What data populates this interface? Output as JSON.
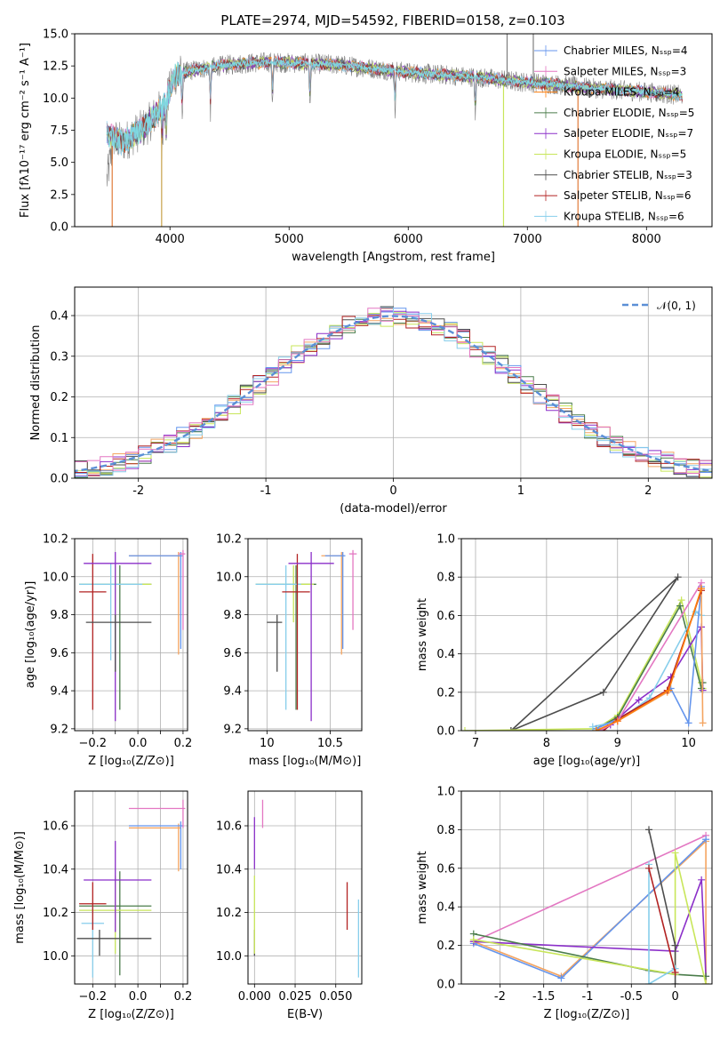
{
  "title": "PLATE=2974, MJD=54592, FIBERID=0158, z=0.103",
  "colors": {
    "grid": "#b0b0b0",
    "model_palette": [
      "#6495ed",
      "#f4a460",
      "#4a7c4a",
      "#8b2fc9",
      "#c8e65a",
      "#4d4d4d",
      "#b22222",
      "#87ceeb",
      "#e377c2",
      "#ff7f0e",
      "#9acd32"
    ]
  },
  "charts": {
    "spectrum": {
      "type": "line",
      "xlabel": "wavelength [Angstrom, rest frame]",
      "ylabel": "Flux [fλ10⁻¹⁷ erg cm⁻² s⁻¹ A⁻¹]",
      "xlim": [
        3200,
        8550
      ],
      "ylim": [
        0,
        15
      ],
      "xticks": [
        4000,
        5000,
        6000,
        7000,
        8000
      ],
      "yticks": [
        0.0,
        2.5,
        5.0,
        7.5,
        10.0,
        12.5,
        15.0
      ],
      "legend_position": "top-right",
      "legend": [
        {
          "label": "Chabrier MILES, Nₛₛₚ=4",
          "color": "#6495ed"
        },
        {
          "label": "Salpeter MILES, Nₛₛₚ=3",
          "color": "#e377c2"
        },
        {
          "label": "Kroupa MILES, Nₛₛₚ=4",
          "color": "#ff7f0e"
        },
        {
          "label": "Chabrier ELODIE, Nₛₛₚ=5",
          "color": "#4a7c4a"
        },
        {
          "label": "Salpeter ELODIE, Nₛₛₚ=7",
          "color": "#8b2fc9"
        },
        {
          "label": "Kroupa ELODIE, Nₛₛₚ=5",
          "color": "#c8e65a"
        },
        {
          "label": "Chabrier STELIB, Nₛₛₚ=3",
          "color": "#4d4d4d"
        },
        {
          "label": "Salpeter STELIB, Nₛₛₚ=6",
          "color": "#b22222"
        },
        {
          "label": "Kroupa STELIB, Nₛₛₚ=6",
          "color": "#87ceeb"
        }
      ],
      "continuum": {
        "x": [
          3470,
          3600,
          3800,
          3950,
          4050,
          4200,
          4500,
          4800,
          5100,
          5400,
          5700,
          6000,
          6300,
          6600,
          6900,
          7200,
          7500,
          7800,
          8100,
          8300
        ],
        "y": [
          7.2,
          6.5,
          7.8,
          9.5,
          11.8,
          12.2,
          12.6,
          12.8,
          12.7,
          12.6,
          12.3,
          12.0,
          11.8,
          11.6,
          11.3,
          11.1,
          10.8,
          10.6,
          10.4,
          10.2
        ]
      }
    },
    "residuals": {
      "type": "histogram",
      "xlabel": "(data-model)/error",
      "ylabel": "Normed distribution",
      "xlim": [
        -2.5,
        2.5
      ],
      "ylim": [
        0,
        0.47
      ],
      "xticks": [
        -2,
        -1,
        0,
        1,
        2
      ],
      "yticks": [
        0.0,
        0.1,
        0.2,
        0.3,
        0.4
      ],
      "legend_position": "top-right",
      "legend": [
        {
          "label": "𝒩(0, 1)",
          "color": "#5b8fd6",
          "style": "dashed"
        }
      ],
      "bin_width": 0.1,
      "gaussian": {
        "mean": 0,
        "sigma": 1
      }
    },
    "age_Z": {
      "type": "errorbar",
      "xlabel": "Z [log₁₀(Z/Z⊙)]",
      "ylabel": "age  [log₁₀(age/yr)]",
      "xlim": [
        -0.28,
        0.22
      ],
      "ylim": [
        9.19,
        10.2
      ],
      "xticks": [
        -0.2,
        -0.1,
        0.0,
        0.1,
        0.2
      ],
      "xtick_labels": [
        "−0.2",
        "",
        "0.0",
        "",
        "0.2"
      ],
      "yticks": [
        9.2,
        9.4,
        9.6,
        9.8,
        10.0,
        10.2
      ],
      "points": [
        {
          "x": -0.08,
          "xerr": [
            0.18,
            0.14
          ],
          "y": 9.96,
          "yerr": [
            0.66,
            0.1
          ],
          "color": "#4a7c4a"
        },
        {
          "x": -0.1,
          "xerr": [
            0.16,
            0.16
          ],
          "y": 9.96,
          "yerr": [
            0.2,
            0.1
          ],
          "color": "#c8e65a"
        },
        {
          "x": -0.12,
          "xerr": [
            0.14,
            0.14
          ],
          "y": 9.96,
          "yerr": [
            0.4,
            0.11
          ],
          "color": "#87ceeb"
        },
        {
          "x": -0.2,
          "xerr": [
            0.06,
            0.06
          ],
          "y": 9.92,
          "yerr": [
            0.62,
            0.2
          ],
          "color": "#b22222"
        },
        {
          "x": -0.1,
          "xerr": [
            0.14,
            0.16
          ],
          "y": 10.07,
          "yerr": [
            0.83,
            0.06
          ],
          "color": "#8b2fc9"
        },
        {
          "x": -0.1,
          "xerr": [
            0.13,
            0.16
          ],
          "y": 9.76,
          "yerr": [
            0.26,
            0.04
          ],
          "color": "#4d4d4d"
        },
        {
          "x": 0.18,
          "xerr": [
            0.22,
            0.01
          ],
          "y": 10.11,
          "yerr": [
            0.52,
            0.02
          ],
          "color": "#f4a460"
        },
        {
          "x": 0.19,
          "xerr": [
            0.23,
            0.01
          ],
          "y": 10.11,
          "yerr": [
            0.49,
            0.02
          ],
          "color": "#6495ed"
        },
        {
          "x": 0.2,
          "xerr": [
            0.02,
            0.01
          ],
          "y": 10.12,
          "yerr": [
            0.4,
            0.02
          ],
          "color": "#e377c2"
        }
      ]
    },
    "age_mass": {
      "type": "errorbar",
      "xlabel": "mass [log₁₀(M/M⊙)]",
      "ylabel": "",
      "xlim": [
        9.85,
        10.75
      ],
      "ylim": [
        9.19,
        10.2
      ],
      "xticks": [
        10.0,
        10.5
      ],
      "xtick_labels": [
        "10",
        "10.5"
      ],
      "yticks": [
        9.2,
        9.4,
        9.6,
        9.8,
        10.0,
        10.2
      ],
      "points": [
        {
          "x": 10.23,
          "xerr": [
            0.32,
            0.16
          ],
          "y": 9.96,
          "yerr": [
            0.66,
            0.1
          ],
          "color": "#4a7c4a"
        },
        {
          "x": 10.21,
          "xerr": [
            0.3,
            0.16
          ],
          "y": 9.96,
          "yerr": [
            0.2,
            0.1
          ],
          "color": "#c8e65a"
        },
        {
          "x": 10.15,
          "xerr": [
            0.24,
            0.12
          ],
          "y": 9.96,
          "yerr": [
            0.66,
            0.1
          ],
          "color": "#87ceeb"
        },
        {
          "x": 10.24,
          "xerr": [
            0.12,
            0.1
          ],
          "y": 9.92,
          "yerr": [
            0.62,
            0.2
          ],
          "color": "#b22222"
        },
        {
          "x": 10.35,
          "xerr": [
            0.18,
            0.18
          ],
          "y": 10.07,
          "yerr": [
            0.83,
            0.06
          ],
          "color": "#8b2fc9"
        },
        {
          "x": 10.08,
          "xerr": [
            0.08,
            0.04
          ],
          "y": 9.76,
          "yerr": [
            0.26,
            0.04
          ],
          "color": "#4d4d4d"
        },
        {
          "x": 10.59,
          "xerr": [
            0.16,
            0.02
          ],
          "y": 10.11,
          "yerr": [
            0.52,
            0.02
          ],
          "color": "#f4a460"
        },
        {
          "x": 10.6,
          "xerr": [
            0.14,
            0.02
          ],
          "y": 10.11,
          "yerr": [
            0.49,
            0.02
          ],
          "color": "#6495ed"
        },
        {
          "x": 10.68,
          "xerr": [
            0.03,
            0.03
          ],
          "y": 10.12,
          "yerr": [
            0.4,
            0.02
          ],
          "color": "#e377c2"
        }
      ]
    },
    "mass_weight_age": {
      "type": "line",
      "xlabel": "age  [log₁₀(age/yr)]",
      "ylabel": "mass weight",
      "xlim": [
        6.8,
        10.33
      ],
      "ylim": [
        0,
        1.0
      ],
      "xticks": [
        7,
        8,
        9,
        10
      ],
      "yticks": [
        0.0,
        0.2,
        0.4,
        0.6,
        0.8,
        1.0
      ],
      "series": [
        {
          "color": "#4d4d4d",
          "x": [
            7.5,
            8.8,
            9.85,
            7.5
          ],
          "y": [
            0.0,
            0.2,
            0.8,
            0.0
          ]
        },
        {
          "color": "#c8e65a",
          "x": [
            6.85,
            8.7,
            9.0,
            9.9,
            10.18,
            10.2
          ],
          "y": [
            0.0,
            0.01,
            0.08,
            0.68,
            0.25,
            0.22
          ]
        },
        {
          "color": "#4a7c4a",
          "x": [
            8.7,
            9.0,
            9.88,
            10.18,
            10.2
          ],
          "y": [
            0.01,
            0.07,
            0.65,
            0.22,
            0.25
          ]
        },
        {
          "color": "#8b2fc9",
          "x": [
            8.9,
            9.3,
            9.75,
            10.18,
            10.2
          ],
          "y": [
            0.03,
            0.16,
            0.28,
            0.54,
            0.21
          ]
        },
        {
          "color": "#87ceeb",
          "x": [
            8.65,
            9.0,
            9.45,
            10.1,
            10.18
          ],
          "y": [
            0.02,
            0.05,
            0.17,
            0.62,
            0.6
          ]
        },
        {
          "color": "#6495ed",
          "x": [
            8.7,
            9.0,
            9.75,
            10.0,
            10.18
          ],
          "y": [
            0.01,
            0.06,
            0.22,
            0.04,
            0.75
          ]
        },
        {
          "color": "#f4a460",
          "x": [
            8.7,
            9.0,
            9.7,
            10.18,
            10.2
          ],
          "y": [
            0.0,
            0.05,
            0.2,
            0.73,
            0.04
          ]
        },
        {
          "color": "#b22222",
          "x": [
            8.8,
            9.0,
            9.7,
            10.18
          ],
          "y": [
            0.0,
            0.06,
            0.21,
            0.73
          ]
        },
        {
          "color": "#e377c2",
          "x": [
            8.75,
            9.0,
            10.18
          ],
          "y": [
            0.0,
            0.05,
            0.77
          ]
        },
        {
          "color": "#ff7f0e",
          "x": [
            8.7,
            9.0,
            9.72,
            10.18
          ],
          "y": [
            0.0,
            0.05,
            0.21,
            0.74
          ]
        }
      ]
    },
    "mass_Z": {
      "type": "errorbar",
      "xlabel": "Z [log₁₀(Z/Z⊙)]",
      "ylabel": "mass [log₁₀(M/M⊙)]",
      "xlim": [
        -0.28,
        0.22
      ],
      "ylim": [
        9.87,
        10.76
      ],
      "xticks": [
        -0.2,
        -0.1,
        0.0,
        0.1,
        0.2
      ],
      "xtick_labels": [
        "−0.2",
        "",
        "0.0",
        "",
        "0.2"
      ],
      "yticks": [
        10.0,
        10.2,
        10.4,
        10.6
      ],
      "points": [
        {
          "x": -0.08,
          "xerr": [
            0.18,
            0.14
          ],
          "y": 10.23,
          "yerr": [
            0.32,
            0.16
          ],
          "color": "#4a7c4a"
        },
        {
          "x": -0.1,
          "xerr": [
            0.16,
            0.16
          ],
          "y": 10.21,
          "yerr": [
            0.2,
            0.16
          ],
          "color": "#c8e65a"
        },
        {
          "x": -0.2,
          "xerr": [
            0.05,
            0.05
          ],
          "y": 10.15,
          "yerr": [
            0.25,
            0.1
          ],
          "color": "#87ceeb"
        },
        {
          "x": -0.2,
          "xerr": [
            0.06,
            0.06
          ],
          "y": 10.24,
          "yerr": [
            0.12,
            0.1
          ],
          "color": "#b22222"
        },
        {
          "x": -0.1,
          "xerr": [
            0.14,
            0.16
          ],
          "y": 10.35,
          "yerr": [
            0.24,
            0.18
          ],
          "color": "#8b2fc9"
        },
        {
          "x": -0.17,
          "xerr": [
            0.1,
            0.23
          ],
          "y": 10.08,
          "yerr": [
            0.08,
            0.04
          ],
          "color": "#4d4d4d"
        },
        {
          "x": 0.18,
          "xerr": [
            0.22,
            0.01
          ],
          "y": 10.59,
          "yerr": [
            0.2,
            0.02
          ],
          "color": "#f4a460"
        },
        {
          "x": 0.19,
          "xerr": [
            0.23,
            0.01
          ],
          "y": 10.6,
          "yerr": [
            0.2,
            0.02
          ],
          "color": "#6495ed"
        },
        {
          "x": 0.2,
          "xerr": [
            0.24,
            0.01
          ],
          "y": 10.68,
          "yerr": [
            0.09,
            0.04
          ],
          "color": "#e377c2"
        }
      ]
    },
    "mass_ebv": {
      "type": "errorbar",
      "xlabel": "E(B-V)",
      "ylabel": "",
      "xlim": [
        -0.004,
        0.066
      ],
      "ylim": [
        9.87,
        10.76
      ],
      "xticks": [
        0.0,
        0.025,
        0.05
      ],
      "xtick_labels": [
        "0.000",
        "0.025",
        "0.050"
      ],
      "yticks": [
        10.0,
        10.2,
        10.4,
        10.6
      ],
      "points": [
        {
          "x": 0.0,
          "y": 10.08,
          "yerr": [
            0.08,
            0.04
          ],
          "color": "#4d4d4d"
        },
        {
          "x": 0.0,
          "y": 10.21,
          "yerr": [
            0.2,
            0.16
          ],
          "color": "#c8e65a"
        },
        {
          "x": 0.0,
          "y": 10.5,
          "yerr": [
            0.1,
            0.14
          ],
          "color": "#8b2fc9"
        },
        {
          "x": 0.005,
          "y": 10.68,
          "yerr": [
            0.09,
            0.04
          ],
          "color": "#e377c2"
        },
        {
          "x": 0.057,
          "y": 10.24,
          "yerr": [
            0.12,
            0.1
          ],
          "color": "#b22222"
        },
        {
          "x": 0.064,
          "y": 10.15,
          "yerr": [
            0.25,
            0.11
          ],
          "color": "#87ceeb"
        }
      ]
    },
    "mass_weight_Z": {
      "type": "line",
      "xlabel": "Z [log₁₀(Z/Z⊙)]",
      "ylabel": "mass weight",
      "xlim": [
        -2.44,
        0.42
      ],
      "ylim": [
        0,
        1.0
      ],
      "xticks": [
        -2.0,
        -1.5,
        -1.0,
        -0.5,
        0.0
      ],
      "yticks": [
        0.0,
        0.2,
        0.4,
        0.6,
        0.8,
        1.0
      ],
      "series": [
        {
          "color": "#e377c2",
          "x": [
            -2.3,
            0.35
          ],
          "y": [
            0.22,
            0.77
          ]
        },
        {
          "color": "#f4a460",
          "x": [
            -2.3,
            -1.3,
            0.35,
            0.35
          ],
          "y": [
            0.22,
            0.04,
            0.74,
            0.0
          ]
        },
        {
          "color": "#6495ed",
          "x": [
            -2.3,
            -1.3,
            0.35
          ],
          "y": [
            0.21,
            0.03,
            0.75
          ]
        },
        {
          "color": "#8b2fc9",
          "x": [
            -2.3,
            0.0,
            0.3,
            0.35
          ],
          "y": [
            0.22,
            0.17,
            0.54,
            0.04
          ]
        },
        {
          "color": "#4a7c4a",
          "x": [
            -2.3,
            -0.3,
            0.0,
            0.35
          ],
          "y": [
            0.26,
            0.07,
            0.05,
            0.04
          ]
        },
        {
          "color": "#c8e65a",
          "x": [
            -2.3,
            0.0,
            0.0,
            0.35
          ],
          "y": [
            0.23,
            0.05,
            0.68,
            0.0
          ]
        },
        {
          "color": "#4d4d4d",
          "x": [
            -0.3,
            0.0,
            0.0
          ],
          "y": [
            0.8,
            0.2,
            0.0
          ]
        },
        {
          "color": "#87ceeb",
          "x": [
            -0.3,
            -0.3,
            0.0
          ],
          "y": [
            0.62,
            0.0,
            0.08
          ]
        },
        {
          "color": "#b22222",
          "x": [
            -0.3,
            0.0
          ],
          "y": [
            0.6,
            0.06
          ]
        }
      ]
    }
  }
}
